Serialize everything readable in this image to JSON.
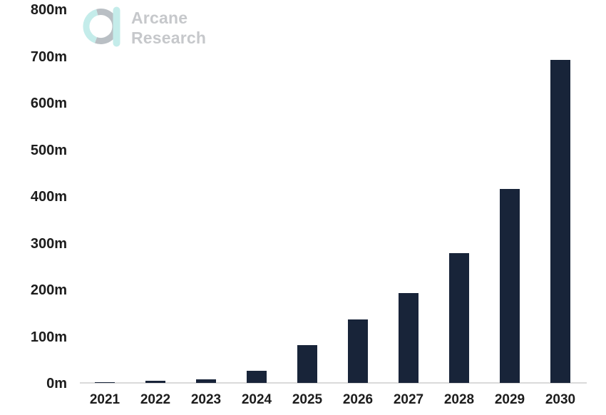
{
  "brand": {
    "line1": "Arcane",
    "line2": "Research",
    "logo_icon": "arcane-a-ring-icon"
  },
  "colors": {
    "bar": "#182439",
    "axis_line": "#dadada",
    "tick_text": "#1c1c1c",
    "logo_teal": "#c4ecea",
    "logo_gray": "#b9bfc4",
    "logo_text": "#c6c8cb"
  },
  "chart_data": {
    "type": "bar",
    "categories": [
      "2021",
      "2022",
      "2023",
      "2024",
      "2025",
      "2026",
      "2027",
      "2028",
      "2029",
      "2030"
    ],
    "values": [
      1,
      5,
      8,
      26,
      81,
      136,
      193,
      278,
      416,
      692
    ],
    "unit": "m",
    "ylim": [
      0,
      800
    ],
    "ytick_interval": 100,
    "ytick_labels": [
      "0m",
      "100m",
      "200m",
      "300m",
      "400m",
      "500m",
      "600m",
      "700m",
      "800m"
    ],
    "xlabel": "",
    "ylabel": "",
    "grid": false,
    "legend": "none",
    "bar_color": "#182439"
  }
}
